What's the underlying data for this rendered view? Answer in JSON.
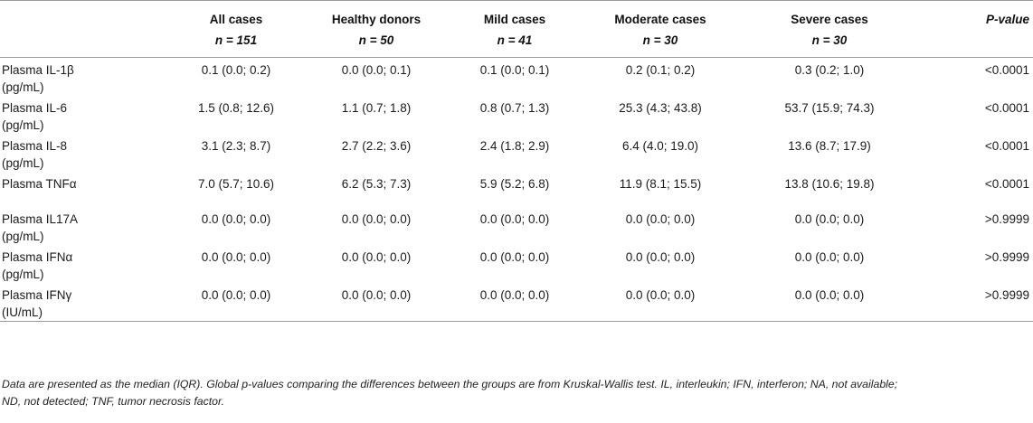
{
  "table": {
    "headers": [
      {
        "title": "",
        "n": ""
      },
      {
        "title": "All cases",
        "n": "n = 151"
      },
      {
        "title": "Healthy donors",
        "n": "n = 50"
      },
      {
        "title": "Mild cases",
        "n": "n = 41"
      },
      {
        "title": "Moderate cases",
        "n": "n = 30"
      },
      {
        "title": "Severe cases",
        "n": "n = 30"
      },
      {
        "title": "P-value",
        "n": ""
      }
    ],
    "rows": [
      {
        "label_line1": "Plasma IL-1β",
        "label_line2": "(pg/mL)",
        "all": "0.1 (0.0; 0.2)",
        "healthy": "0.0 (0.0; 0.1)",
        "mild": "0.1 (0.0; 0.1)",
        "moderate": "0.2 (0.1; 0.2)",
        "severe": "0.3 (0.2; 1.0)",
        "p": "<0.0001"
      },
      {
        "label_line1": "Plasma IL-6",
        "label_line2": "(pg/mL)",
        "all": "1.5 (0.8; 12.6)",
        "healthy": "1.1 (0.7; 1.8)",
        "mild": "0.8 (0.7; 1.3)",
        "moderate": "25.3 (4.3; 43.8)",
        "severe": "53.7 (15.9; 74.3)",
        "p": "<0.0001"
      },
      {
        "label_line1": "Plasma IL-8",
        "label_line2": "(pg/mL)",
        "all": "3.1 (2.3; 8.7)",
        "healthy": "2.7 (2.2; 3.6)",
        "mild": "2.4 (1.8; 2.9)",
        "moderate": "6.4 (4.0; 19.0)",
        "severe": "13.6 (8.7; 17.9)",
        "p": "<0.0001"
      },
      {
        "label_line1": "Plasma TNFα",
        "label_line2": "",
        "all": "7.0 (5.7; 10.6)",
        "healthy": "6.2 (5.3; 7.3)",
        "mild": "5.9 (5.2; 6.8)",
        "moderate": "11.9 (8.1; 15.5)",
        "severe": "13.8 (10.6; 19.8)",
        "p": "<0.0001"
      },
      {
        "label_line1": "Plasma IL17A",
        "label_line2": "(pg/mL)",
        "all": "0.0 (0.0; 0.0)",
        "healthy": "0.0 (0.0; 0.0)",
        "mild": "0.0 (0.0; 0.0)",
        "moderate": "0.0 (0.0; 0.0)",
        "severe": "0.0 (0.0; 0.0)",
        "p": ">0.9999"
      },
      {
        "label_line1": "Plasma IFNα",
        "label_line2": "(pg/mL)",
        "all": "0.0 (0.0; 0.0)",
        "healthy": "0.0 (0.0; 0.0)",
        "mild": "0.0 (0.0; 0.0)",
        "moderate": "0.0 (0.0; 0.0)",
        "severe": "0.0 (0.0; 0.0)",
        "p": ">0.9999"
      },
      {
        "label_line1": "Plasma IFNγ",
        "label_line2": "(IU/mL)",
        "all": "0.0 (0.0; 0.0)",
        "healthy": "0.0 (0.0; 0.0)",
        "mild": "0.0 (0.0; 0.0)",
        "moderate": "0.0 (0.0; 0.0)",
        "severe": "0.0 (0.0; 0.0)",
        "p": ">0.9999"
      }
    ]
  },
  "footnote": {
    "line1": "Data are presented as the median (IQR). Global p-values comparing the differences between the groups are from Kruskal-Wallis test. IL, interleukin; IFN, interferon; NA, not available;",
    "line2": "ND, not detected; TNF, tumor necrosis factor."
  }
}
